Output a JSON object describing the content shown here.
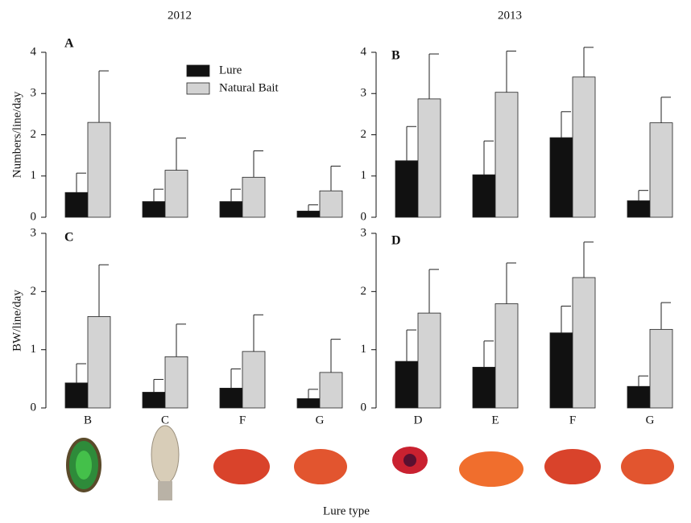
{
  "chart_data": [
    {
      "type": "bar",
      "title": "2012",
      "panel": "A",
      "ylabel": "Numbers/line/day",
      "categories": [
        null,
        null,
        null,
        null
      ],
      "series": [
        {
          "name": "Lure",
          "color": "#111111",
          "values": [
            0.6,
            0.38,
            0.38,
            0.15
          ],
          "errors": [
            0.47,
            0.3,
            0.3,
            0.15
          ]
        },
        {
          "name": "Natural Bait",
          "color": "#d3d3d3",
          "values": [
            2.3,
            1.14,
            0.97,
            0.64
          ],
          "errors": [
            1.25,
            0.78,
            0.64,
            0.6
          ]
        }
      ],
      "ylim": [
        0,
        4
      ],
      "yticks": [
        0,
        1,
        2,
        3,
        4
      ]
    },
    {
      "type": "bar",
      "title": "2013",
      "panel": "B",
      "categories": [
        null,
        null,
        null,
        null
      ],
      "series": [
        {
          "color": "#111111",
          "values": [
            1.37,
            1.03,
            1.93,
            0.4
          ],
          "errors": [
            0.83,
            0.82,
            0.63,
            0.25
          ]
        },
        {
          "color": "#d3d3d3",
          "values": [
            2.87,
            3.03,
            3.4,
            2.29
          ],
          "errors": [
            1.09,
            1.0,
            0.72,
            0.62
          ]
        }
      ],
      "ylim": [
        0,
        4
      ],
      "yticks": [
        0,
        1,
        2,
        3,
        4
      ]
    },
    {
      "type": "bar",
      "panel": "C",
      "ylabel": "BW/line/day",
      "xlabel": "Lure type",
      "categories": [
        "B",
        "C",
        "F",
        "G"
      ],
      "series": [
        {
          "color": "#111111",
          "values": [
            0.43,
            0.27,
            0.34,
            0.16
          ],
          "errors": [
            0.33,
            0.22,
            0.33,
            0.16
          ]
        },
        {
          "color": "#d3d3d3",
          "values": [
            1.57,
            0.88,
            0.97,
            0.61
          ],
          "errors": [
            0.89,
            0.56,
            0.63,
            0.57
          ]
        }
      ],
      "ylim": [
        0,
        3
      ],
      "yticks": [
        0,
        1,
        2,
        3
      ]
    },
    {
      "type": "bar",
      "panel": "D",
      "categories": [
        "D",
        "E",
        "F",
        "G"
      ],
      "series": [
        {
          "color": "#111111",
          "values": [
            0.8,
            0.7,
            1.29,
            0.37
          ],
          "errors": [
            0.54,
            0.45,
            0.46,
            0.18
          ]
        },
        {
          "color": "#d3d3d3",
          "values": [
            1.63,
            1.79,
            2.24,
            1.35
          ],
          "errors": [
            0.75,
            0.7,
            0.61,
            0.46
          ]
        }
      ],
      "ylim": [
        0,
        3
      ],
      "yticks": [
        0,
        1,
        2,
        3
      ]
    }
  ]
}
